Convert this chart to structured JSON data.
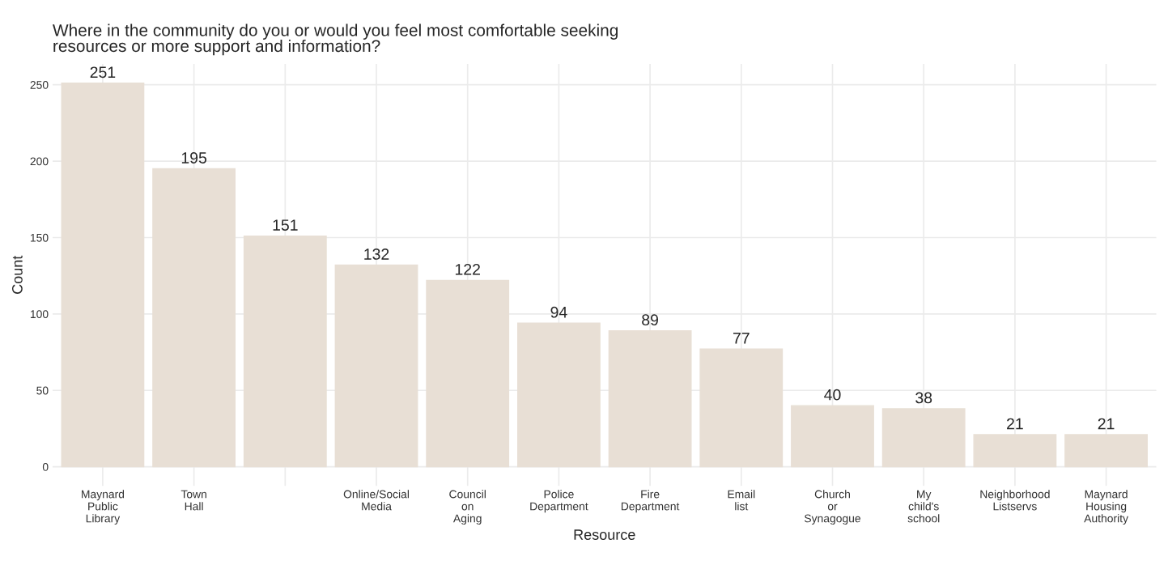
{
  "chart_data": {
    "type": "bar",
    "title": "Where in the community do you or would you feel most comfortable seeking\nresources or more support and information?",
    "xlabel": "Resource",
    "ylabel": "Count",
    "categories": [
      "Maynard\nPublic\nLibrary",
      "Town\nHall",
      null,
      "Online/Social\nMedia",
      "Council\non\nAging",
      "Police\nDepartment",
      "Fire\nDepartment",
      "Email\nlist",
      "Church\nor\nSynagogue",
      "My\nchild's\nschool",
      "Neighborhood\nListservs",
      "Maynard\nHousing\nAuthority"
    ],
    "values": [
      251,
      195,
      151,
      132,
      122,
      94,
      89,
      77,
      40,
      38,
      21,
      21
    ],
    "color": "#e8dfd5",
    "ylim": [
      -12.55,
      263.55
    ],
    "yticks": [
      0,
      50,
      100,
      150,
      200,
      250
    ],
    "grid": true,
    "data_labels": true
  }
}
